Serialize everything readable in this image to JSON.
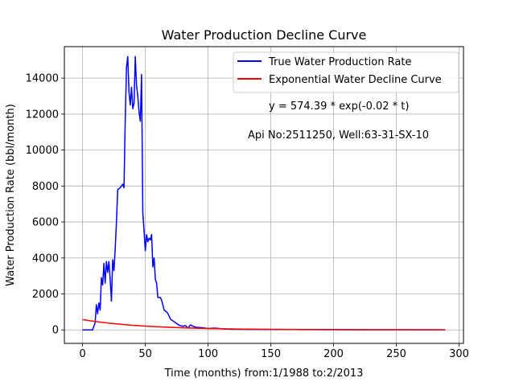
{
  "chart_data": {
    "type": "line",
    "title": "Water Production Decline Curve",
    "xlabel": "Time (months) from:1/1988 to:2/2013",
    "ylabel": "Water Production Rate (bbl/month)",
    "xlim": [
      -14.5,
      303.5
    ],
    "ylim": [
      -750,
      15750
    ],
    "x_ticks": [
      0,
      50,
      100,
      150,
      200,
      250,
      300
    ],
    "y_ticks": [
      0,
      2000,
      4000,
      6000,
      8000,
      10000,
      12000,
      14000
    ],
    "grid": true,
    "legend_placement": "top-right",
    "annotations": [
      {
        "text": "y = 574.39 * exp(-0.02 * t)",
        "x": 150,
        "y": 12500
      },
      {
        "text": "Api No:2511250, Well:63-31-SX-10",
        "x": 133,
        "y": 10850
      }
    ],
    "series": [
      {
        "name": "True Water Production Rate",
        "color": "#0000ff",
        "points": [
          [
            0,
            0
          ],
          [
            5,
            0
          ],
          [
            8,
            0
          ],
          [
            10,
            400
          ],
          [
            11,
            1400
          ],
          [
            12,
            900
          ],
          [
            13,
            1500
          ],
          [
            14,
            1100
          ],
          [
            15,
            2900
          ],
          [
            16,
            2500
          ],
          [
            17,
            3700
          ],
          [
            18,
            2600
          ],
          [
            19,
            3800
          ],
          [
            20,
            3200
          ],
          [
            21,
            3800
          ],
          [
            22,
            2800
          ],
          [
            23,
            1600
          ],
          [
            24,
            3900
          ],
          [
            25,
            3300
          ],
          [
            26,
            4500
          ],
          [
            27,
            6000
          ],
          [
            28,
            7800
          ],
          [
            30,
            7900
          ],
          [
            32,
            8100
          ],
          [
            33,
            7900
          ],
          [
            34,
            11700
          ],
          [
            35,
            14600
          ],
          [
            36,
            15200
          ],
          [
            37,
            13200
          ],
          [
            38,
            12500
          ],
          [
            39,
            13500
          ],
          [
            40,
            12300
          ],
          [
            41,
            12600
          ],
          [
            42,
            15200
          ],
          [
            43,
            13600
          ],
          [
            44,
            13000
          ],
          [
            45,
            12100
          ],
          [
            46,
            11600
          ],
          [
            47,
            14200
          ],
          [
            48,
            6500
          ],
          [
            49,
            5500
          ],
          [
            50,
            4400
          ],
          [
            51,
            5300
          ],
          [
            52,
            4900
          ],
          [
            53,
            5100
          ],
          [
            54,
            5000
          ],
          [
            55,
            5300
          ],
          [
            56,
            3500
          ],
          [
            57,
            4000
          ],
          [
            58,
            2800
          ],
          [
            59,
            2600
          ],
          [
            60,
            1800
          ],
          [
            62,
            1800
          ],
          [
            63,
            1650
          ],
          [
            65,
            1100
          ],
          [
            67,
            1000
          ],
          [
            68,
            900
          ],
          [
            70,
            600
          ],
          [
            72,
            500
          ],
          [
            74,
            400
          ],
          [
            76,
            300
          ],
          [
            78,
            230
          ],
          [
            80,
            200
          ],
          [
            82,
            240
          ],
          [
            84,
            100
          ],
          [
            86,
            280
          ],
          [
            88,
            200
          ],
          [
            90,
            150
          ],
          [
            95,
            120
          ],
          [
            100,
            80
          ],
          [
            105,
            100
          ],
          [
            110,
            70
          ],
          [
            115,
            50
          ],
          [
            120,
            40
          ],
          [
            130,
            30
          ],
          [
            150,
            25
          ],
          [
            180,
            20
          ],
          [
            200,
            15
          ],
          [
            230,
            10
          ],
          [
            260,
            8
          ],
          [
            289,
            5
          ]
        ]
      },
      {
        "name": "Exponential Water Decline Curve",
        "color": "#ff0000",
        "amplitude": 574.39,
        "rate": 0.02,
        "t_start": 0,
        "t_end": 289
      }
    ]
  }
}
